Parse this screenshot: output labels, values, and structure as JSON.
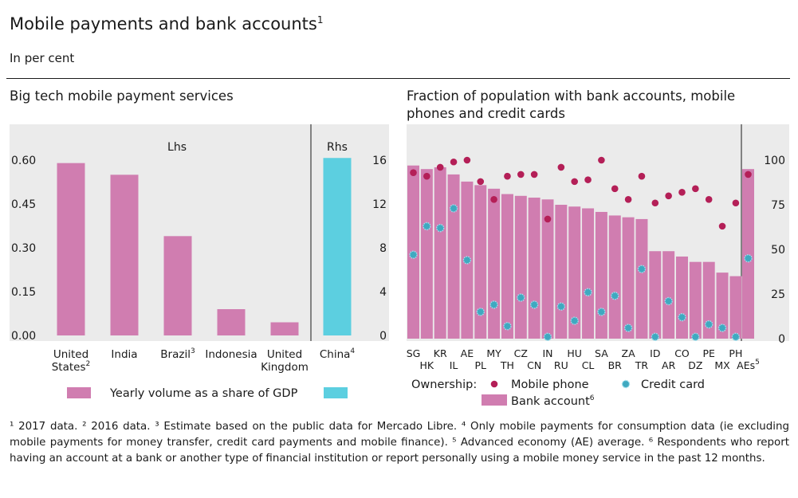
{
  "header": {
    "title": "Mobile payments and bank accounts",
    "title_footnote": "1",
    "subtitle": "In per cent"
  },
  "colors": {
    "pink": "#d07db0",
    "cyan": "#5ccfe0",
    "dot_red": "#b41f57",
    "dot_teal": "#3fa9c0",
    "panel_bg": "#ebebeb"
  },
  "footnotes": "¹ 2017 data.  ² 2016 data.  ³ Estimate based on the public data for Mercado Libre.  ⁴ Only mobile payments for consumption data (ie excluding mobile payments for money transfer, credit card payments and mobile finance). ⁵ Advanced economy (AE) average.  ⁶ Respondents who report having an account at a bank or another type of financial institution or report personally using a mobile money service in the past 12 months.",
  "chart_data": [
    {
      "type": "bar",
      "title": "Big tech mobile payment services",
      "left_axis_label": "Lhs",
      "right_axis_label": "Rhs",
      "left_ylim": [
        0,
        0.75
      ],
      "left_ticks": [
        "0.00",
        "0.15",
        "0.30",
        "0.45",
        "0.60"
      ],
      "right_ylim": [
        0,
        20
      ],
      "right_ticks": [
        "0",
        "4",
        "8",
        "12",
        "16"
      ],
      "categories": [
        {
          "name": "United States",
          "footnote": "2",
          "axis": "left",
          "value": 0.59
        },
        {
          "name": "India",
          "footnote": "",
          "axis": "left",
          "value": 0.55
        },
        {
          "name": "Brazil",
          "footnote": "3",
          "axis": "left",
          "value": 0.34
        },
        {
          "name": "Indonesia",
          "footnote": "",
          "axis": "left",
          "value": 0.09
        },
        {
          "name": "United Kingdom",
          "footnote": "",
          "axis": "left",
          "value": 0.045
        },
        {
          "name": "China",
          "footnote": "4",
          "axis": "right",
          "value": 16.2
        }
      ],
      "legend": [
        {
          "label": "Yearly volume as a share of GDP",
          "color": "#d07db0"
        },
        {
          "label": "",
          "color": "#5ccfe0"
        }
      ]
    },
    {
      "type": "bar+scatter",
      "title": "Fraction of population with bank accounts, mobile phones and credit cards",
      "ylim": [
        0,
        125
      ],
      "ticks": [
        "0",
        "25",
        "50",
        "75",
        "100"
      ],
      "categories": [
        "SG",
        "HK",
        "KR",
        "IL",
        "AE",
        "PL",
        "MY",
        "TH",
        "CZ",
        "CN",
        "IN",
        "RU",
        "HU",
        "CL",
        "SA",
        "BR",
        "ZA",
        "TR",
        "ID",
        "AR",
        "CO",
        "DZ",
        "PE",
        "MX",
        "PH",
        "AEs"
      ],
      "category_footnotes": {
        "AEs": "5"
      },
      "series": [
        {
          "name": "Bank account",
          "footnote": "6",
          "kind": "bar",
          "values": [
            97,
            95,
            96,
            92,
            88,
            86,
            84,
            81,
            80,
            79,
            78,
            75,
            74,
            73,
            71,
            69,
            68,
            67,
            49,
            49,
            46,
            43,
            43,
            37,
            35,
            95
          ]
        },
        {
          "name": "Mobile phone",
          "kind": "dot",
          "values": [
            93,
            91,
            96,
            99,
            100,
            88,
            78,
            91,
            92,
            92,
            67,
            96,
            88,
            89,
            100,
            84,
            78,
            91,
            76,
            80,
            82,
            84,
            78,
            63,
            76,
            92
          ]
        },
        {
          "name": "Credit card",
          "kind": "dot",
          "values": [
            47,
            63,
            62,
            73,
            44,
            15,
            19,
            7,
            23,
            19,
            1,
            18,
            10,
            26,
            15,
            24,
            6,
            39,
            1,
            21,
            12,
            1,
            8,
            6,
            1,
            45
          ]
        }
      ],
      "legend_prefix": "Ownership:"
    }
  ]
}
